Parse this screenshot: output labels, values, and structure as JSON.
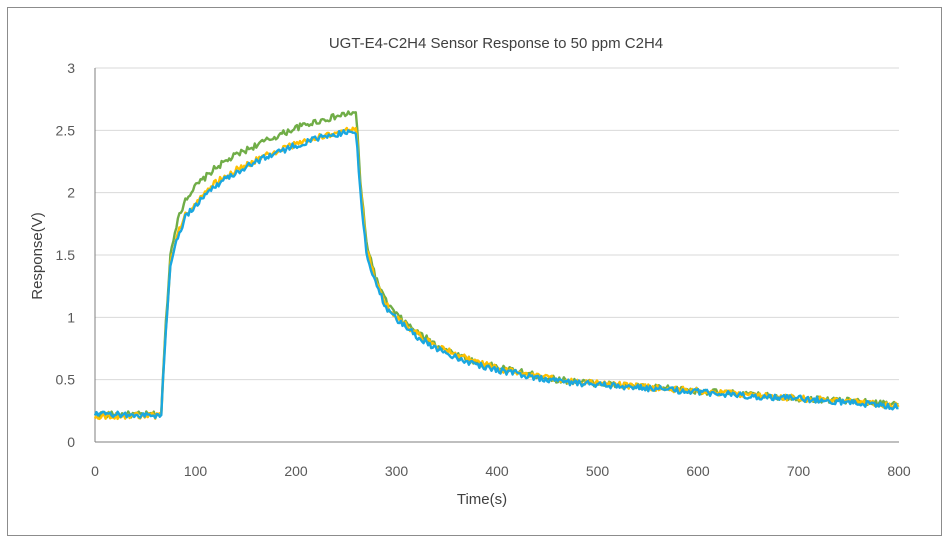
{
  "chart_data": {
    "type": "line",
    "title": "UGT-E4-C2H4 Sensor Response to 50 ppm C2H4",
    "xlabel": "Time(s)",
    "ylabel": "Response(V)",
    "xlim": [
      0,
      800
    ],
    "ylim": [
      0,
      3
    ],
    "x_ticks": [
      0,
      100,
      200,
      300,
      400,
      500,
      600,
      700,
      800
    ],
    "y_ticks": [
      0,
      0.5,
      1,
      1.5,
      2,
      2.5,
      3
    ],
    "y_tick_labels": [
      "0",
      "0.5",
      "1",
      "1.5",
      "2",
      "2.5",
      "3"
    ],
    "x_tick_labels": [
      "0",
      "100",
      "200",
      "300",
      "400",
      "500",
      "600",
      "700",
      "800"
    ],
    "grid": "horizontal",
    "legend": "none",
    "series": [
      {
        "color": "#70ad47",
        "points": [
          [
            0,
            0.22
          ],
          [
            30,
            0.22
          ],
          [
            60,
            0.22
          ],
          [
            66,
            0.23
          ],
          [
            70,
            0.9
          ],
          [
            75,
            1.5
          ],
          [
            80,
            1.72
          ],
          [
            90,
            1.95
          ],
          [
            100,
            2.05
          ],
          [
            120,
            2.2
          ],
          [
            140,
            2.3
          ],
          [
            160,
            2.38
          ],
          [
            180,
            2.45
          ],
          [
            200,
            2.52
          ],
          [
            220,
            2.57
          ],
          [
            240,
            2.61
          ],
          [
            255,
            2.64
          ],
          [
            260,
            2.63
          ],
          [
            264,
            2.1
          ],
          [
            270,
            1.6
          ],
          [
            280,
            1.3
          ],
          [
            290,
            1.12
          ],
          [
            300,
            1.02
          ],
          [
            320,
            0.88
          ],
          [
            340,
            0.78
          ],
          [
            360,
            0.7
          ],
          [
            380,
            0.64
          ],
          [
            400,
            0.6
          ],
          [
            430,
            0.55
          ],
          [
            460,
            0.5
          ],
          [
            500,
            0.47
          ],
          [
            550,
            0.44
          ],
          [
            600,
            0.41
          ],
          [
            650,
            0.38
          ],
          [
            700,
            0.35
          ],
          [
            750,
            0.33
          ],
          [
            800,
            0.3
          ]
        ]
      },
      {
        "color": "#ffc000",
        "points": [
          [
            0,
            0.21
          ],
          [
            30,
            0.21
          ],
          [
            60,
            0.21
          ],
          [
            66,
            0.22
          ],
          [
            70,
            0.85
          ],
          [
            75,
            1.42
          ],
          [
            80,
            1.62
          ],
          [
            90,
            1.82
          ],
          [
            100,
            1.92
          ],
          [
            120,
            2.08
          ],
          [
            140,
            2.18
          ],
          [
            160,
            2.26
          ],
          [
            180,
            2.33
          ],
          [
            200,
            2.39
          ],
          [
            220,
            2.44
          ],
          [
            240,
            2.48
          ],
          [
            255,
            2.5
          ],
          [
            260,
            2.5
          ],
          [
            264,
            2.05
          ],
          [
            270,
            1.55
          ],
          [
            280,
            1.27
          ],
          [
            290,
            1.1
          ],
          [
            300,
            1.0
          ],
          [
            320,
            0.87
          ],
          [
            340,
            0.77
          ],
          [
            360,
            0.7
          ],
          [
            380,
            0.64
          ],
          [
            400,
            0.59
          ],
          [
            430,
            0.54
          ],
          [
            460,
            0.5
          ],
          [
            500,
            0.47
          ],
          [
            550,
            0.44
          ],
          [
            600,
            0.41
          ],
          [
            650,
            0.38
          ],
          [
            700,
            0.35
          ],
          [
            750,
            0.33
          ],
          [
            800,
            0.29
          ]
        ]
      },
      {
        "color": "#1aa7e0",
        "points": [
          [
            0,
            0.22
          ],
          [
            30,
            0.22
          ],
          [
            60,
            0.21
          ],
          [
            66,
            0.22
          ],
          [
            70,
            0.85
          ],
          [
            75,
            1.4
          ],
          [
            80,
            1.6
          ],
          [
            90,
            1.8
          ],
          [
            100,
            1.9
          ],
          [
            120,
            2.06
          ],
          [
            140,
            2.16
          ],
          [
            160,
            2.25
          ],
          [
            180,
            2.32
          ],
          [
            200,
            2.38
          ],
          [
            220,
            2.43
          ],
          [
            240,
            2.47
          ],
          [
            255,
            2.49
          ],
          [
            260,
            2.49
          ],
          [
            264,
            2.0
          ],
          [
            270,
            1.52
          ],
          [
            280,
            1.25
          ],
          [
            290,
            1.08
          ],
          [
            300,
            0.98
          ],
          [
            320,
            0.85
          ],
          [
            340,
            0.75
          ],
          [
            360,
            0.68
          ],
          [
            380,
            0.62
          ],
          [
            400,
            0.58
          ],
          [
            430,
            0.53
          ],
          [
            460,
            0.49
          ],
          [
            500,
            0.46
          ],
          [
            550,
            0.43
          ],
          [
            600,
            0.4
          ],
          [
            650,
            0.37
          ],
          [
            700,
            0.35
          ],
          [
            750,
            0.32
          ],
          [
            800,
            0.28
          ]
        ]
      }
    ]
  },
  "colors": {
    "gridline": "#d9d9d9",
    "axis": "#7f7f7f"
  }
}
